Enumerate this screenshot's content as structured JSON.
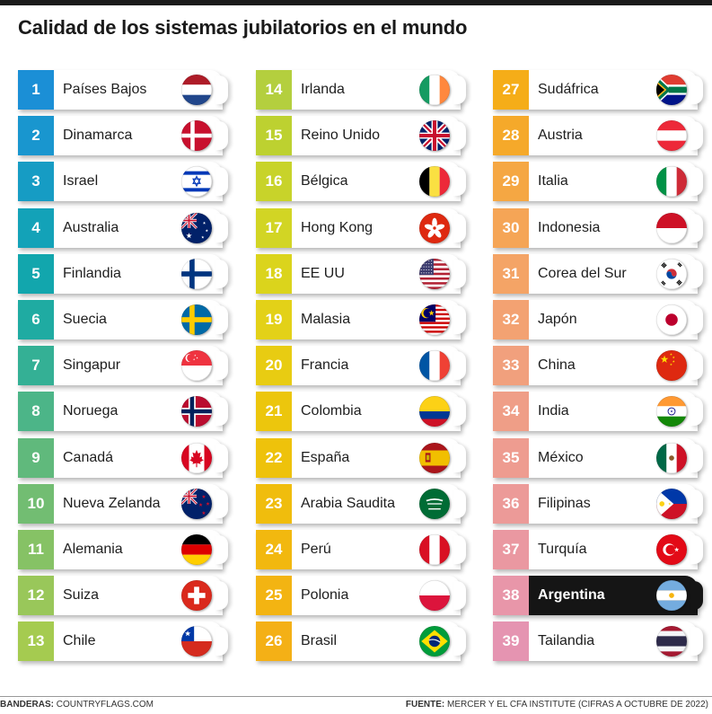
{
  "title": "Calidad de los sistemas jubilatorios en el mundo",
  "footer": {
    "left_label": "BANDERAS:",
    "left_value": "COUNTRYFLAGS.COM",
    "right_label": "FUENTE:",
    "right_value": "MERCER Y EL CFA INSTITUTE (CIFRAS A OCTUBRE DE 2022)"
  },
  "highlight_rank": "38",
  "countries": [
    {
      "rank": "1",
      "name": "Países Bajos",
      "color": "#1b8fd6",
      "flag": "nl"
    },
    {
      "rank": "2",
      "name": "Dinamarca",
      "color": "#1996cf",
      "flag": "dk"
    },
    {
      "rank": "3",
      "name": "Israel",
      "color": "#169cc4",
      "flag": "il"
    },
    {
      "rank": "4",
      "name": "Australia",
      "color": "#13a2b8",
      "flag": "au"
    },
    {
      "rank": "5",
      "name": "Finlandia",
      "color": "#12a6ad",
      "flag": "fi"
    },
    {
      "rank": "6",
      "name": "Suecia",
      "color": "#1faba2",
      "flag": "se"
    },
    {
      "rank": "7",
      "name": "Singapur",
      "color": "#34b095",
      "flag": "sg"
    },
    {
      "rank": "8",
      "name": "Noruega",
      "color": "#4cb588",
      "flag": "no"
    },
    {
      "rank": "9",
      "name": "Canadá",
      "color": "#60b97c",
      "flag": "ca"
    },
    {
      "rank": "10",
      "name": "Nueva Zelanda",
      "color": "#72bd72",
      "flag": "nz"
    },
    {
      "rank": "11",
      "name": "Alemania",
      "color": "#86c265",
      "flag": "de"
    },
    {
      "rank": "12",
      "name": "Suiza",
      "color": "#99c75a",
      "flag": "ch"
    },
    {
      "rank": "13",
      "name": "Chile",
      "color": "#a5cb50",
      "flag": "cl"
    },
    {
      "rank": "14",
      "name": "Irlanda",
      "color": "#b4cf3e",
      "flag": "ie"
    },
    {
      "rank": "15",
      "name": "Reino Unido",
      "color": "#bdd130",
      "flag": "gb"
    },
    {
      "rank": "16",
      "name": "Bélgica",
      "color": "#c8d32a",
      "flag": "be"
    },
    {
      "rank": "17",
      "name": "Hong Kong",
      "color": "#d2d524",
      "flag": "hk"
    },
    {
      "rank": "18",
      "name": "EE UU",
      "color": "#dbd41c",
      "flag": "us"
    },
    {
      "rank": "19",
      "name": "Malasia",
      "color": "#e3d118",
      "flag": "my"
    },
    {
      "rank": "20",
      "name": "Francia",
      "color": "#e8cc12",
      "flag": "fr"
    },
    {
      "rank": "21",
      "name": "Colombia",
      "color": "#ecc60d",
      "flag": "co"
    },
    {
      "rank": "22",
      "name": "España",
      "color": "#eec20b",
      "flag": "es"
    },
    {
      "rank": "23",
      "name": "Arabia Saudita",
      "color": "#f0bd0d",
      "flag": "sa"
    },
    {
      "rank": "24",
      "name": "Perú",
      "color": "#f2b80f",
      "flag": "pe"
    },
    {
      "rank": "25",
      "name": "Polonia",
      "color": "#f3b412",
      "flag": "pl"
    },
    {
      "rank": "26",
      "name": "Brasil",
      "color": "#f4b016",
      "flag": "br"
    },
    {
      "rank": "27",
      "name": "Sudáfrica",
      "color": "#f5ad18",
      "flag": "za"
    },
    {
      "rank": "28",
      "name": "Austria",
      "color": "#f5a92a",
      "flag": "at"
    },
    {
      "rank": "29",
      "name": "Italia",
      "color": "#f5a743",
      "flag": "it"
    },
    {
      "rank": "30",
      "name": "Indonesia",
      "color": "#f5a556",
      "flag": "id"
    },
    {
      "rank": "31",
      "name": "Corea del Sur",
      "color": "#f4a466",
      "flag": "kr"
    },
    {
      "rank": "32",
      "name": "Japón",
      "color": "#f3a272",
      "flag": "jp"
    },
    {
      "rank": "33",
      "name": "China",
      "color": "#f1a07d",
      "flag": "cn"
    },
    {
      "rank": "34",
      "name": "India",
      "color": "#ef9e87",
      "flag": "in"
    },
    {
      "rank": "35",
      "name": "México",
      "color": "#ee9c90",
      "flag": "mx"
    },
    {
      "rank": "36",
      "name": "Filipinas",
      "color": "#ec9a98",
      "flag": "ph"
    },
    {
      "rank": "37",
      "name": "Turquía",
      "color": "#ea98a1",
      "flag": "tr"
    },
    {
      "rank": "38",
      "name": "Argentina",
      "color": "#e896a9",
      "flag": "ar"
    },
    {
      "rank": "39",
      "name": "Tailandia",
      "color": "#e594b1",
      "flag": "th"
    }
  ]
}
